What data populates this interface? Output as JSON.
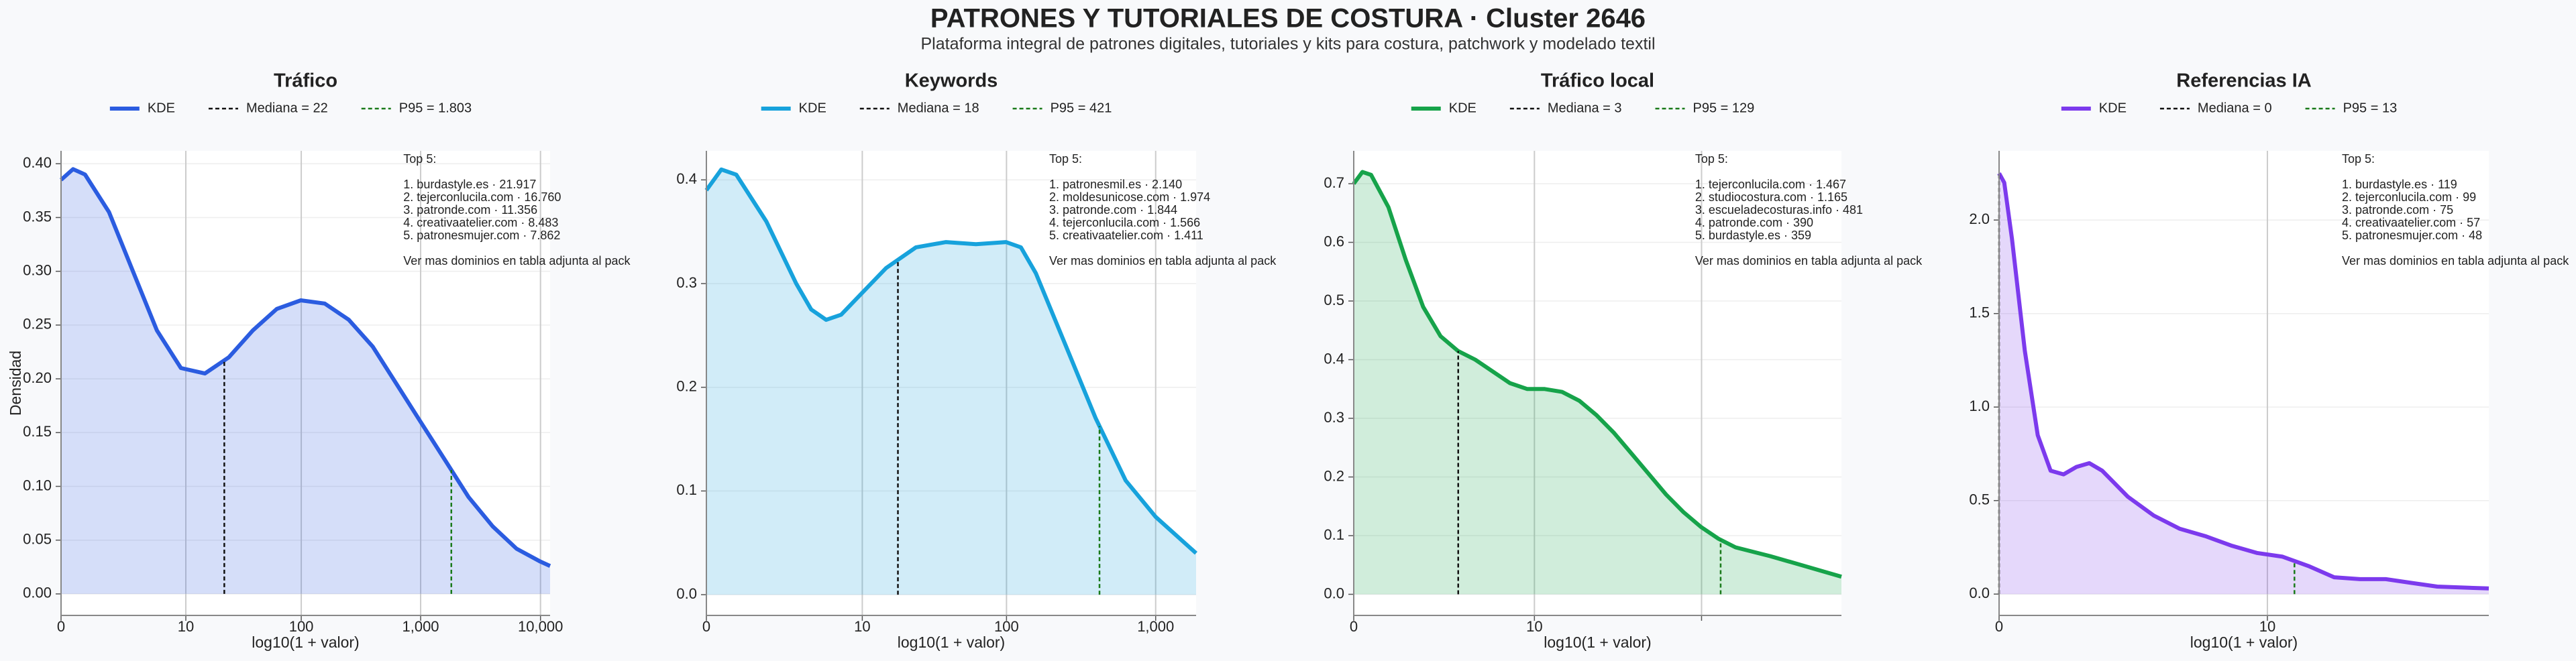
{
  "title": "PATRONES Y TUTORIALES DE COSTURA · Cluster 2646",
  "subtitle": "Plataforma integral de patrones digitales, tutoriales y kits para costura, patchwork y modelado textil",
  "chart_data": [
    {
      "type": "area",
      "title": "Tráfico",
      "xlabel": "log10(1 + valor)",
      "ylabel": "Densidad",
      "x": [
        0,
        0.1,
        0.2,
        0.4,
        0.6,
        0.8,
        1.0,
        1.2,
        1.4,
        1.6,
        1.8,
        2.0,
        2.2,
        2.4,
        2.6,
        2.8,
        3.0,
        3.2,
        3.4,
        3.6,
        3.8,
        4.0,
        4.08
      ],
      "series": [
        {
          "name": "KDE",
          "color": "#2b5ce0",
          "values": [
            0.385,
            0.395,
            0.39,
            0.355,
            0.3,
            0.245,
            0.21,
            0.205,
            0.22,
            0.245,
            0.265,
            0.273,
            0.27,
            0.255,
            0.23,
            0.195,
            0.16,
            0.125,
            0.09,
            0.063,
            0.042,
            0.03,
            0.026
          ]
        }
      ],
      "lines": [
        {
          "name": "Mediana = 22",
          "value": 1.362,
          "color": "#111111"
        },
        {
          "name": "P95 = 1.803",
          "value": 3.256,
          "color": "#1a7a1a"
        }
      ],
      "xlim": [
        0,
        4.08
      ],
      "ylim": [
        -0.02,
        0.412
      ],
      "xticks": [
        0,
        {
          "value": 1.041,
          "label": "10"
        },
        {
          "value": 2.004,
          "label": "100"
        },
        {
          "value": 3.0,
          "label": "1,000"
        },
        {
          "value": 4.0,
          "label": "10,000"
        }
      ],
      "yticks": [
        {
          "value": 0,
          "label": "0.00"
        },
        0.05,
        {
          "value": 0.1,
          "label": "0.10"
        },
        0.15,
        {
          "value": 0.2,
          "label": "0.20"
        },
        0.25,
        {
          "value": 0.3,
          "label": "0.30"
        },
        0.35,
        {
          "value": 0.4,
          "label": "0.40"
        }
      ],
      "annotation": [
        "Top 5:",
        "1. burdastyle.es · 21.917",
        "2. tejerconlucila.com · 16.760",
        "3. patronde.com · 11.356",
        "4. creativaatelier.com · 8.483",
        "5. patronesmujer.com · 7.862",
        "Ver mas dominios en tabla adjunta al pack"
      ]
    },
    {
      "type": "area",
      "title": "Keywords",
      "xlabel": "log10(1 + valor)",
      "x": [
        0,
        0.1,
        0.2,
        0.4,
        0.6,
        0.7,
        0.8,
        0.9,
        1.0,
        1.2,
        1.4,
        1.6,
        1.8,
        2.0,
        2.1,
        2.2,
        2.4,
        2.6,
        2.8,
        3.0,
        3.27
      ],
      "series": [
        {
          "name": "KDE",
          "color": "#17a2dc",
          "values": [
            0.39,
            0.41,
            0.405,
            0.36,
            0.3,
            0.275,
            0.265,
            0.27,
            0.285,
            0.315,
            0.335,
            0.34,
            0.338,
            0.34,
            0.335,
            0.31,
            0.24,
            0.17,
            0.11,
            0.075,
            0.04
          ]
        }
      ],
      "lines": [
        {
          "name": "Mediana = 18",
          "value": 1.279,
          "color": "#111111"
        },
        {
          "name": "P95 = 421",
          "value": 2.625,
          "color": "#1a7a1a"
        }
      ],
      "xlim": [
        0,
        3.27
      ],
      "ylim": [
        -0.02,
        0.428
      ],
      "xticks": [
        0,
        {
          "value": 1.041,
          "label": "10"
        },
        {
          "value": 2.004,
          "label": "100"
        },
        {
          "value": 3.0,
          "label": "1,000"
        }
      ],
      "yticks": [
        {
          "value": 0,
          "label": "0.0"
        },
        0.1,
        0.2,
        0.3,
        0.4
      ],
      "annotation": [
        "Top 5:",
        "1. patronesmil.es · 2.140",
        "2. moldesunicose.com · 1.974",
        "3. patronde.com · 1.844",
        "4. tejerconlucila.com · 1.566",
        "5. creativaatelier.com · 1.411",
        "Ver mas dominios en tabla adjunta al pack"
      ]
    },
    {
      "type": "area",
      "title": "Tráfico local",
      "xlabel": "log10(1 + valor)",
      "x": [
        0,
        0.05,
        0.1,
        0.2,
        0.3,
        0.4,
        0.5,
        0.6,
        0.7,
        0.8,
        0.9,
        1.0,
        1.1,
        1.2,
        1.3,
        1.4,
        1.5,
        1.6,
        1.7,
        1.8,
        1.9,
        2.0,
        2.1,
        2.2,
        2.4,
        2.6,
        2.81
      ],
      "series": [
        {
          "name": "KDE",
          "color": "#16a34a",
          "values": [
            0.7,
            0.72,
            0.715,
            0.66,
            0.57,
            0.49,
            0.44,
            0.415,
            0.4,
            0.38,
            0.36,
            0.35,
            0.35,
            0.345,
            0.33,
            0.305,
            0.275,
            0.24,
            0.205,
            0.17,
            0.14,
            0.115,
            0.095,
            0.08,
            0.065,
            0.048,
            0.03
          ]
        }
      ],
      "lines": [
        {
          "name": "Mediana = 3",
          "value": 0.602,
          "color": "#111111"
        },
        {
          "name": "P95 = 129",
          "value": 2.114,
          "color": "#1a7a1a"
        }
      ],
      "xlim": [
        0,
        2.81
      ],
      "ylim": [
        -0.036,
        0.756
      ],
      "xticks": [
        0,
        {
          "value": 1.041,
          "label": "10"
        },
        {
          "value": 2.004,
          "label": null
        }
      ],
      "yticks": [
        {
          "value": 0,
          "label": "0.0"
        },
        0.1,
        0.2,
        0.3,
        0.4,
        0.5,
        0.6,
        0.7
      ],
      "annotation": [
        "Top 5:",
        "1. tejerconlucila.com · 1.467",
        "2. studiocostura.com · 1.165",
        "3. escueladecosturas.info · 481",
        "4. patronde.com · 390",
        "5. burdastyle.es · 359",
        "Ver mas dominios en tabla adjunta al pack"
      ]
    },
    {
      "type": "area",
      "title": "Referencias IA",
      "xlabel": "log10(1 + valor)",
      "x": [
        0,
        0.02,
        0.05,
        0.1,
        0.15,
        0.2,
        0.25,
        0.3,
        0.35,
        0.4,
        0.5,
        0.6,
        0.7,
        0.8,
        0.9,
        1.0,
        1.1,
        1.2,
        1.3,
        1.4,
        1.5,
        1.6,
        1.7,
        1.9
      ],
      "series": [
        {
          "name": "KDE",
          "color": "#7c3aed",
          "values": [
            2.25,
            2.2,
            1.9,
            1.3,
            0.85,
            0.66,
            0.64,
            0.68,
            0.7,
            0.66,
            0.52,
            0.42,
            0.35,
            0.31,
            0.26,
            0.22,
            0.2,
            0.15,
            0.09,
            0.08,
            0.08,
            0.06,
            0.04,
            0.03
          ]
        }
      ],
      "lines": [
        {
          "name": "Mediana = 0",
          "value": 0,
          "color": "#111111"
        },
        {
          "name": "P95 = 13",
          "value": 1.146,
          "color": "#1a7a1a"
        }
      ],
      "xlim": [
        0,
        1.9
      ],
      "ylim": [
        -0.114,
        2.37
      ],
      "xticks": [
        0,
        {
          "value": 1.041,
          "label": "10"
        }
      ],
      "yticks": [
        {
          "value": 0,
          "label": "0.0"
        },
        0.5,
        {
          "value": 1,
          "label": "1.0"
        },
        1.5,
        {
          "value": 2,
          "label": "2.0"
        }
      ],
      "annotation": [
        "Top 5:",
        "1. burdastyle.es · 119",
        "2. tejerconlucila.com · 99",
        "3. patronde.com · 75",
        "4. creativaatelier.com · 57",
        "5. patronesmujer.com · 48",
        "Ver mas dominios en tabla adjunta al pack"
      ]
    }
  ]
}
